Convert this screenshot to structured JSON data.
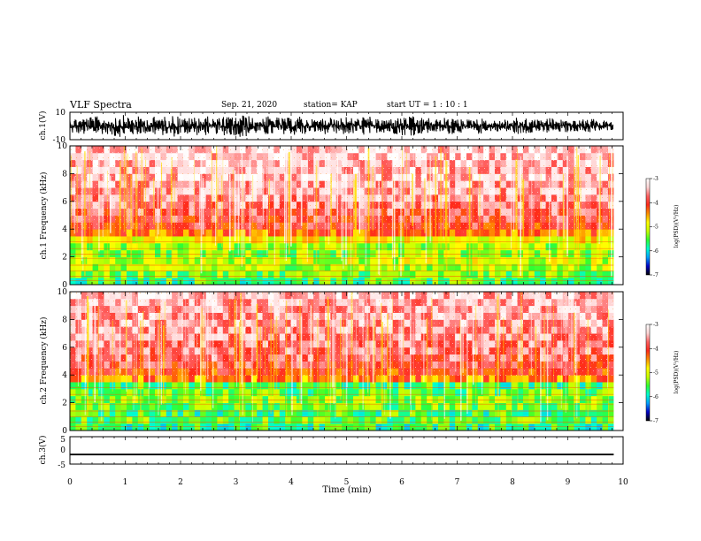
{
  "header": {
    "title": "VLF Spectra",
    "date": "Sep. 21, 2020",
    "station": "station= KAP",
    "start_ut": "start  UT =   1 : 10 : 1"
  },
  "colors": {
    "spectrogram_stops": [
      "#000000",
      "#0000c8",
      "#00a0ff",
      "#00ffd0",
      "#30ff30",
      "#c8ff00",
      "#ffff00",
      "#ff9000",
      "#ff2a1a",
      "#ff6060",
      "#ffd6d6",
      "#ffffff"
    ]
  },
  "chart_data": [
    {
      "type": "line",
      "name": "ch1-waveform-panel",
      "ylabel": "ch.1(V)",
      "ylim": [
        -10,
        10
      ],
      "ytick_labels": [
        "10",
        "-10"
      ],
      "xlim": [
        0,
        10
      ],
      "samples_x_min": [
        0.0,
        0.25,
        0.5,
        0.75,
        1.0,
        1.25,
        1.5,
        1.75,
        2.0,
        2.25,
        2.5,
        2.75,
        3.0,
        3.25,
        3.5,
        3.75,
        4.0,
        4.25,
        4.5,
        4.75,
        5.0,
        5.25,
        5.5,
        5.75,
        6.0,
        6.25,
        6.5,
        6.75,
        7.0,
        7.25,
        7.5,
        7.75,
        8.0,
        8.25,
        8.5,
        8.75,
        9.0,
        9.25,
        9.5,
        9.75
      ],
      "envelope_max_V": [
        6,
        7,
        6,
        8,
        7,
        6,
        7,
        8,
        6,
        7,
        6,
        7,
        8,
        6,
        7,
        6,
        7,
        5,
        6,
        7,
        6,
        7,
        5,
        6,
        7,
        6,
        5,
        6,
        5,
        6,
        4,
        5,
        6,
        5,
        6,
        5,
        4,
        5,
        4,
        3
      ],
      "envelope_min_V": [
        -6,
        -7,
        -6,
        -8,
        -7,
        -6,
        -7,
        -8,
        -6,
        -7,
        -6,
        -7,
        -8,
        -6,
        -7,
        -6,
        -7,
        -5,
        -6,
        -7,
        -6,
        -7,
        -5,
        -6,
        -7,
        -6,
        -5,
        -6,
        -5,
        -6,
        -4,
        -5,
        -6,
        -5,
        -6,
        -5,
        -4,
        -5,
        -4,
        -3
      ]
    },
    {
      "type": "heatmap",
      "name": "ch1-spectrogram",
      "ylabel": "ch.1 Frequency (kHz)",
      "xlim": [
        0,
        9.83
      ],
      "ylim": [
        0,
        10
      ],
      "yticks": [
        "0",
        "2",
        "4",
        "6",
        "8",
        "10"
      ],
      "colorbar": {
        "label": "log(PSD)(V²/Hz)",
        "range": [
          -7,
          -3
        ],
        "ticks": [
          "-3",
          "-4",
          "-5",
          "-6",
          "-7"
        ]
      },
      "freq_bands_kHz": [
        0,
        0.5,
        1.0,
        1.5,
        2.0,
        2.5,
        3.0,
        3.5,
        4.0,
        4.5,
        5.0,
        5.5,
        6.0,
        6.5,
        7.0,
        7.5,
        8.0,
        8.5,
        9.0,
        9.5
      ],
      "log_psd_by_band": [
        -5.6,
        -5.4,
        -5.2,
        -5.1,
        -5.3,
        -5.2,
        -4.9,
        -4.3,
        -4.0,
        -3.9,
        -3.8,
        -3.7,
        -3.6,
        -3.5,
        -3.5,
        -3.4,
        -3.4,
        -3.4,
        -3.3,
        -3.3
      ]
    },
    {
      "type": "heatmap",
      "name": "ch2-spectrogram",
      "ylabel": "ch.2 Frequency (kHz)",
      "xlim": [
        0,
        9.83
      ],
      "ylim": [
        0,
        10
      ],
      "yticks": [
        "0",
        "2",
        "4",
        "6",
        "8",
        "10"
      ],
      "colorbar": {
        "label": "log(PSD)(V²/Hz)",
        "range": [
          -7,
          -3
        ],
        "ticks": [
          "-3",
          "-4",
          "-5",
          "-6",
          "-7"
        ]
      },
      "freq_bands_kHz": [
        0,
        0.5,
        1.0,
        1.5,
        2.0,
        2.5,
        3.0,
        3.5,
        4.0,
        4.5,
        5.0,
        5.5,
        6.0,
        6.5,
        7.0,
        7.5,
        8.0,
        8.5,
        9.0,
        9.5
      ],
      "log_psd_by_band": [
        -5.7,
        -5.5,
        -5.6,
        -5.4,
        -5.3,
        -5.5,
        -5.6,
        -4.4,
        -4.1,
        -3.9,
        -3.8,
        -3.7,
        -3.7,
        -3.6,
        -3.6,
        -3.5,
        -3.5,
        -3.5,
        -3.5,
        -3.4
      ]
    },
    {
      "type": "line",
      "name": "ch3-waveform-panel",
      "ylabel": "ch.3(V)",
      "ylim": [
        -5,
        5
      ],
      "ytick_labels": [
        "5",
        "0",
        "-5"
      ],
      "xlabel": "Time  (min)",
      "xlim": [
        0,
        10
      ],
      "xticks": [
        "0",
        "1",
        "2",
        "3",
        "4",
        "5",
        "6",
        "7",
        "8",
        "9",
        "10"
      ],
      "trace_level_V": [
        -1.8,
        -1.2
      ],
      "trace_end_min": 9.83
    }
  ]
}
